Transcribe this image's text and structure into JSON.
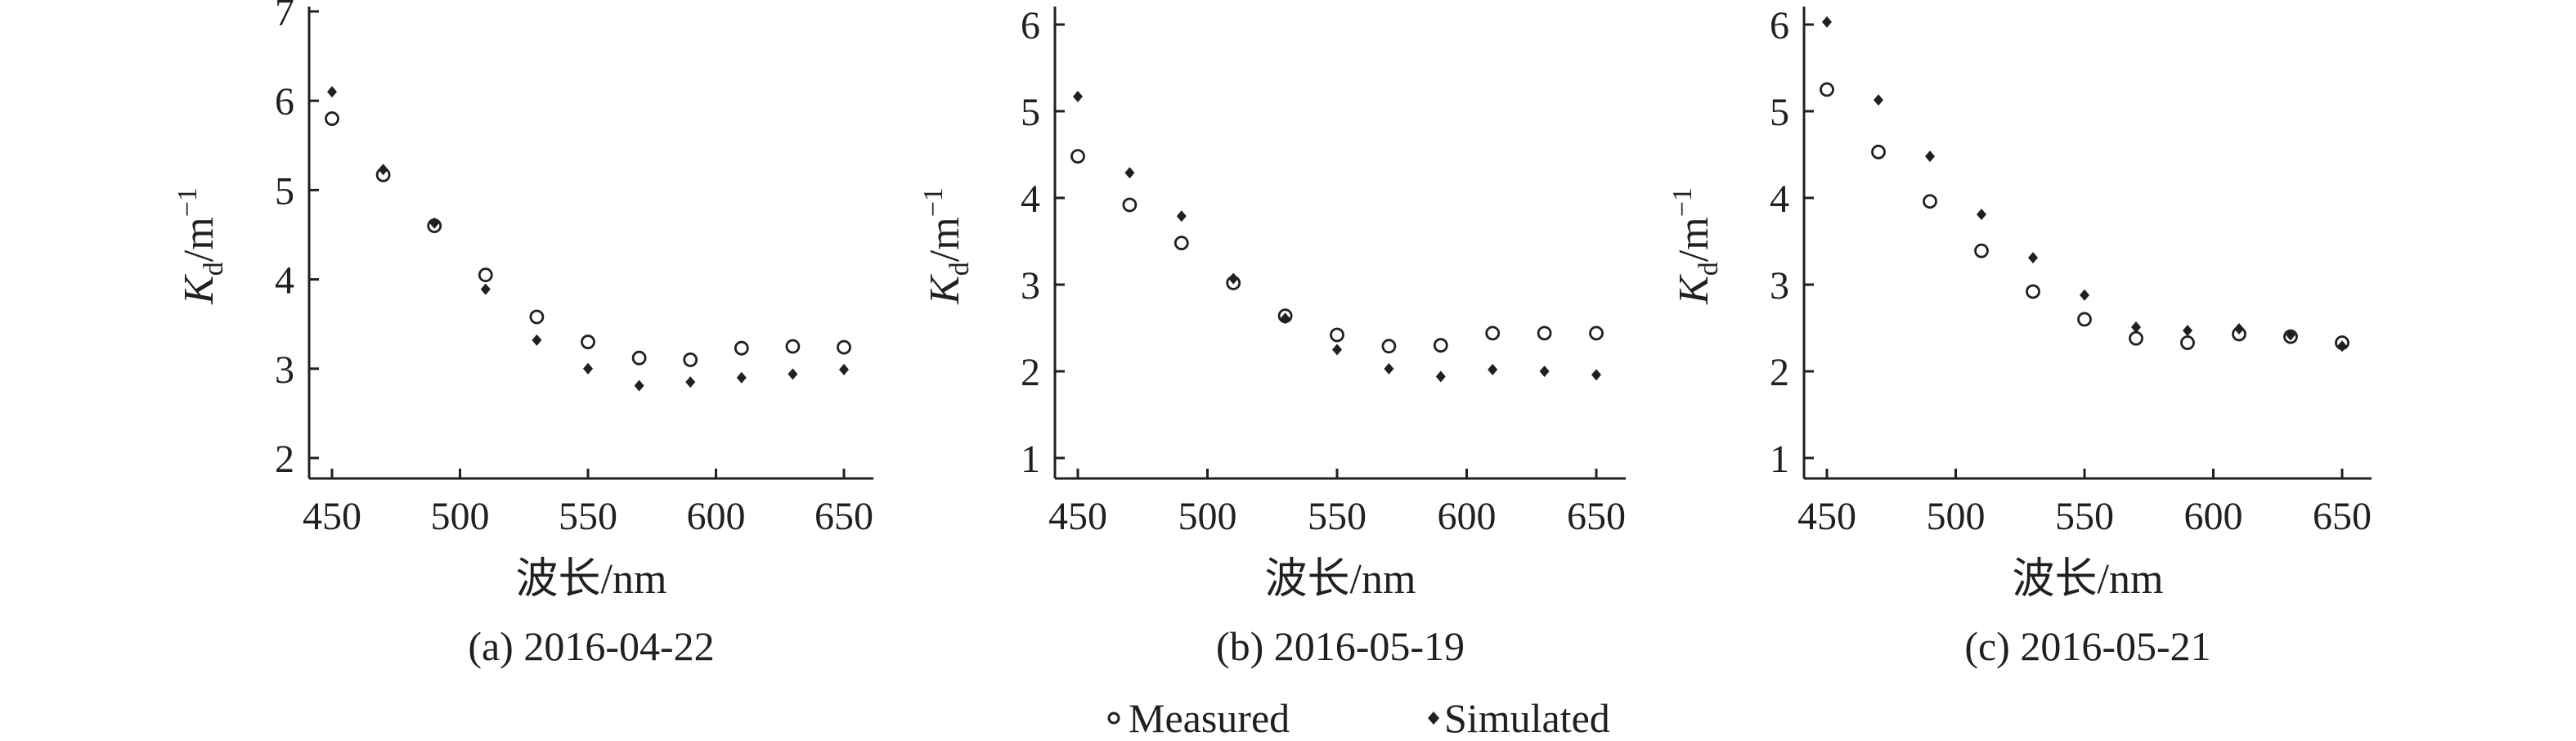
{
  "chart_data": [
    {
      "type": "scatter",
      "caption": "(a) 2016-04-22",
      "xlabel": "波长/nm",
      "ylabel": "Kd/m−1",
      "xlim": [
        445,
        655
      ],
      "ylim": [
        1.8,
        7.1
      ],
      "xticks": [
        450,
        500,
        550,
        600,
        650
      ],
      "yticks": [
        2,
        3,
        4,
        5,
        6,
        7
      ],
      "x": [
        450,
        470,
        490,
        510,
        530,
        550,
        570,
        590,
        610,
        630,
        650
      ],
      "series": [
        {
          "name": "Measured",
          "values": [
            5.8,
            5.17,
            4.6,
            4.05,
            3.58,
            3.3,
            3.12,
            3.1,
            3.23,
            3.25,
            3.24
          ]
        },
        {
          "name": "Simulated",
          "values": [
            6.1,
            5.23,
            4.63,
            3.89,
            3.32,
            3.0,
            2.81,
            2.85,
            2.9,
            2.94,
            2.99
          ]
        }
      ]
    },
    {
      "type": "scatter",
      "caption": "(b) 2016-05-19",
      "xlabel": "波长/nm",
      "ylabel": "Kd/m−1",
      "xlim": [
        445,
        655
      ],
      "ylim": [
        0.8,
        6.2
      ],
      "xticks": [
        450,
        500,
        550,
        600,
        650
      ],
      "yticks": [
        1,
        2,
        3,
        4,
        5,
        6
      ],
      "x": [
        450,
        470,
        490,
        510,
        530,
        550,
        570,
        590,
        610,
        630,
        650
      ],
      "series": [
        {
          "name": "Measured",
          "values": [
            4.48,
            3.92,
            3.48,
            3.02,
            2.64,
            2.42,
            2.29,
            2.3,
            2.44,
            2.44,
            2.44
          ]
        },
        {
          "name": "Simulated",
          "values": [
            5.17,
            4.29,
            3.79,
            3.07,
            2.61,
            2.25,
            2.03,
            1.94,
            2.02,
            2.0,
            1.96
          ]
        }
      ]
    },
    {
      "type": "scatter",
      "caption": "(c) 2016-05-21",
      "xlabel": "波长/nm",
      "ylabel": "Kd/m−1",
      "xlim": [
        445,
        655
      ],
      "ylim": [
        0.8,
        6.2
      ],
      "xticks": [
        450,
        500,
        550,
        600,
        650
      ],
      "yticks": [
        1,
        2,
        3,
        4,
        5,
        6
      ],
      "x": [
        450,
        470,
        490,
        510,
        530,
        550,
        570,
        590,
        610,
        630,
        650
      ],
      "series": [
        {
          "name": "Measured",
          "values": [
            5.25,
            4.53,
            3.96,
            3.39,
            2.92,
            2.6,
            2.38,
            2.33,
            2.43,
            2.4,
            2.33
          ]
        },
        {
          "name": "Simulated",
          "values": [
            6.03,
            5.13,
            4.48,
            3.81,
            3.31,
            2.88,
            2.51,
            2.47,
            2.49,
            2.42,
            2.29
          ]
        }
      ]
    }
  ],
  "legend": [
    {
      "label": "Measured",
      "marker": "open-circle"
    },
    {
      "label": "Simulated",
      "marker": "filled-diamond"
    }
  ],
  "colors": {
    "axis": "#231f20",
    "marker": "#231f20"
  }
}
